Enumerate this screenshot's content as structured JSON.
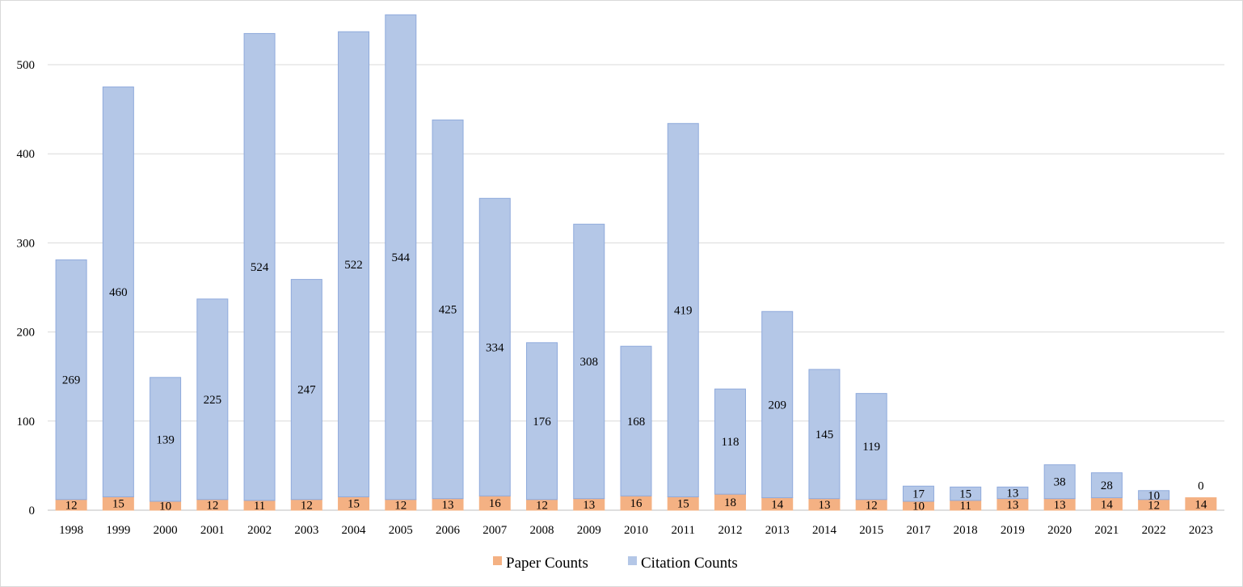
{
  "chart_data": {
    "type": "bar",
    "stacked": true,
    "categories": [
      "1998",
      "1999",
      "2000",
      "2001",
      "2002",
      "2003",
      "2004",
      "2005",
      "2006",
      "2007",
      "2008",
      "2009",
      "2010",
      "2011",
      "2012",
      "2013",
      "2014",
      "2015",
      "2017",
      "2018",
      "2019",
      "2020",
      "2021",
      "2022",
      "2023"
    ],
    "series": [
      {
        "name": "Paper Counts",
        "color": "#f4b183",
        "values": [
          12,
          15,
          10,
          12,
          11,
          12,
          15,
          12,
          13,
          16,
          12,
          13,
          16,
          15,
          18,
          14,
          13,
          12,
          10,
          11,
          13,
          13,
          14,
          12,
          14
        ]
      },
      {
        "name": "Citation Counts",
        "color": "#b4c7e7",
        "values": [
          269,
          460,
          139,
          225,
          524,
          247,
          522,
          544,
          425,
          334,
          176,
          308,
          168,
          419,
          118,
          209,
          145,
          119,
          17,
          15,
          13,
          38,
          28,
          10,
          0
        ]
      }
    ],
    "ylim": [
      0,
      550
    ],
    "yticks": [
      0,
      100,
      200,
      300,
      400,
      500
    ],
    "grid": true,
    "legend_position": "bottom",
    "title": "",
    "xlabel": "",
    "ylabel": ""
  }
}
